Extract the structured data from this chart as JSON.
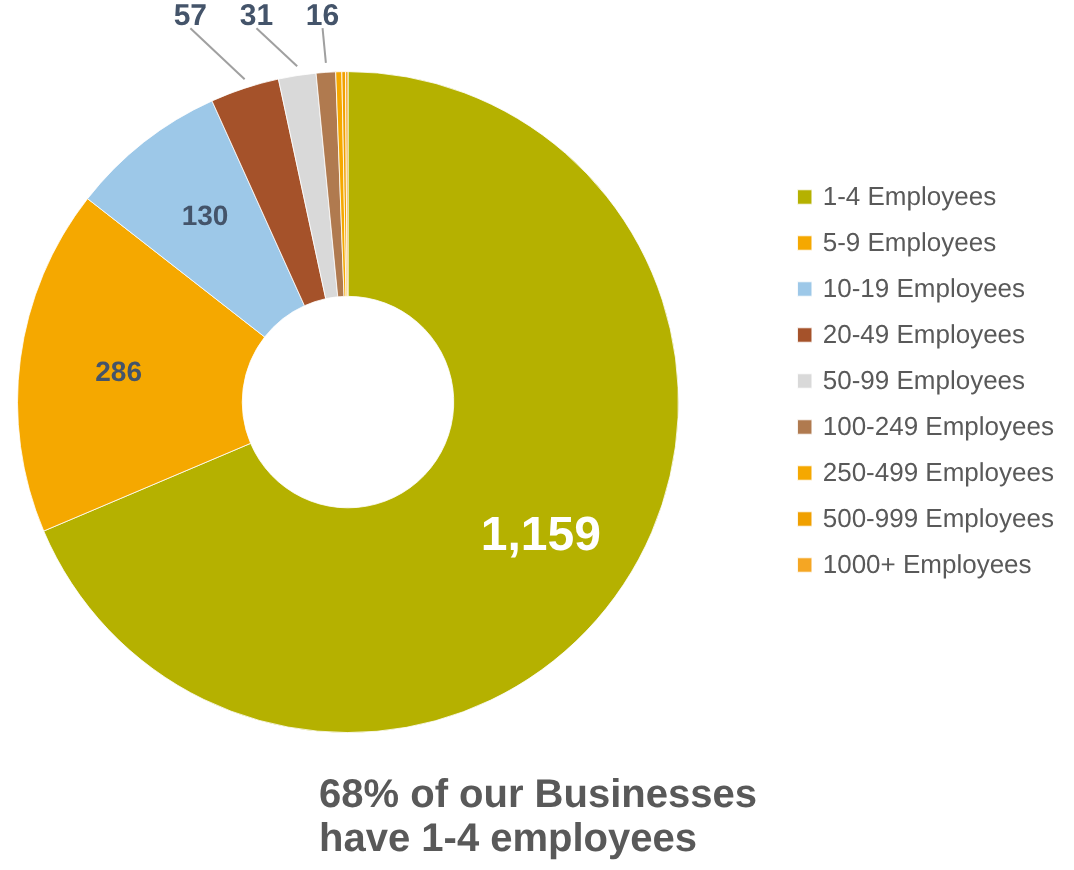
{
  "chart_data": {
    "type": "donut",
    "title": "68% of our Businesses\nhave 1-4 employees",
    "categories": [
      "1-4 Employees",
      "5-9 Employees",
      "10-19 Employees",
      "20-49 Employees",
      "50-99 Employees",
      "100-249 Employees",
      "250-499 Employees",
      "500-999 Employees",
      "1000+ Employees"
    ],
    "values": [
      1159,
      286,
      130,
      57,
      31,
      16,
      5,
      3,
      2
    ],
    "colors": [
      "#b5b100",
      "#f5a800",
      "#9dc8e8",
      "#a5522a",
      "#d9d9d9",
      "#b07a4f",
      "#f5a800",
      "#f0a000",
      "#f5a623"
    ],
    "value_labels": [
      "1,159",
      "286",
      "130",
      "57",
      "31",
      "16",
      null,
      null,
      null
    ],
    "legend": "right"
  }
}
